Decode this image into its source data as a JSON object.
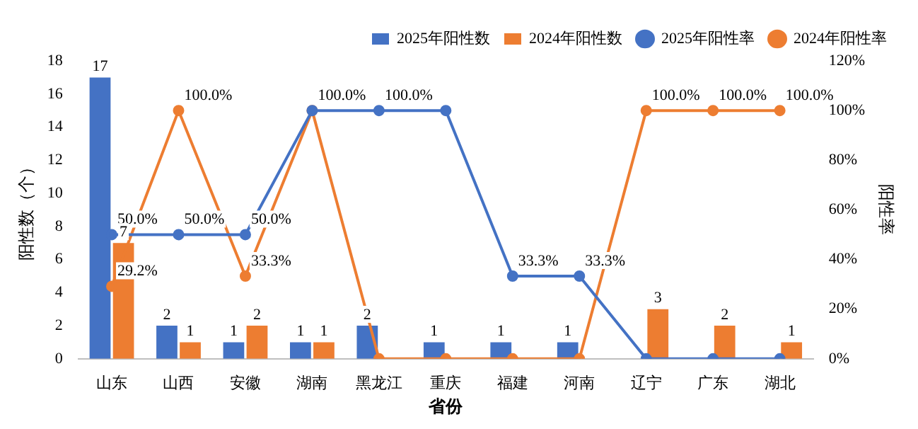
{
  "chart_data": {
    "type": "bar",
    "xlabel": "省份",
    "ylabel": "阳性数（个）",
    "y2label": "阳性率",
    "categories": [
      "山东",
      "山西",
      "安徽",
      "湖南",
      "黑龙江",
      "重庆",
      "福建",
      "河南",
      "辽宁",
      "广东",
      "湖北"
    ],
    "series": [
      {
        "name": "2025年阳性数",
        "color": "#4472c4",
        "values": [
          17,
          2,
          1,
          1,
          2,
          1,
          1,
          1,
          0,
          0,
          0
        ],
        "value_labels": [
          "17",
          "2",
          "1",
          "1",
          "2",
          "1",
          "1",
          "1",
          null,
          null,
          null
        ]
      },
      {
        "name": "2024年阳性数",
        "color": "#ed7d31",
        "values": [
          7,
          1,
          2,
          1,
          0,
          0,
          0,
          0,
          3,
          2,
          1
        ],
        "value_labels": [
          "7",
          "1",
          "2",
          "1",
          null,
          null,
          null,
          null,
          "3",
          "2",
          "1"
        ]
      },
      {
        "name": "2025年阳性率",
        "type": "line",
        "axis": "y2",
        "color": "#4472c4",
        "values": [
          50,
          50,
          50,
          100,
          100,
          100,
          33.3,
          33.3,
          0,
          0,
          0
        ],
        "value_labels": [
          "50.0%",
          "50.0%",
          "50.0%",
          null,
          "100.0%",
          null,
          "33.3%",
          "33.3%",
          null,
          null,
          null
        ]
      },
      {
        "name": "2024年阳性率",
        "type": "line",
        "axis": "y2",
        "color": "#ed7d31",
        "values": [
          29.2,
          100,
          33.3,
          100,
          0,
          0,
          0,
          0,
          100,
          100,
          100
        ],
        "value_labels": [
          "29.2%",
          "100.0%",
          "33.3%",
          "100.0%",
          null,
          null,
          null,
          null,
          "100.0%",
          "100.0%",
          "100.0%"
        ]
      }
    ],
    "ylim": [
      0,
      18
    ],
    "yticks": [
      0,
      2,
      4,
      6,
      8,
      10,
      12,
      14,
      16,
      18
    ],
    "y2lim": [
      0,
      120
    ],
    "y2ticks": [
      {
        "value": 0,
        "label": "0%"
      },
      {
        "value": 20,
        "label": "20%"
      },
      {
        "value": 40,
        "label": "40%"
      },
      {
        "value": 60,
        "label": "60%"
      },
      {
        "value": 80,
        "label": "80%"
      },
      {
        "value": 100,
        "label": "100%"
      },
      {
        "value": 120,
        "label": "120%"
      }
    ],
    "grid": false,
    "legend": "top right",
    "marker": "circle",
    "line_style": "solid"
  }
}
